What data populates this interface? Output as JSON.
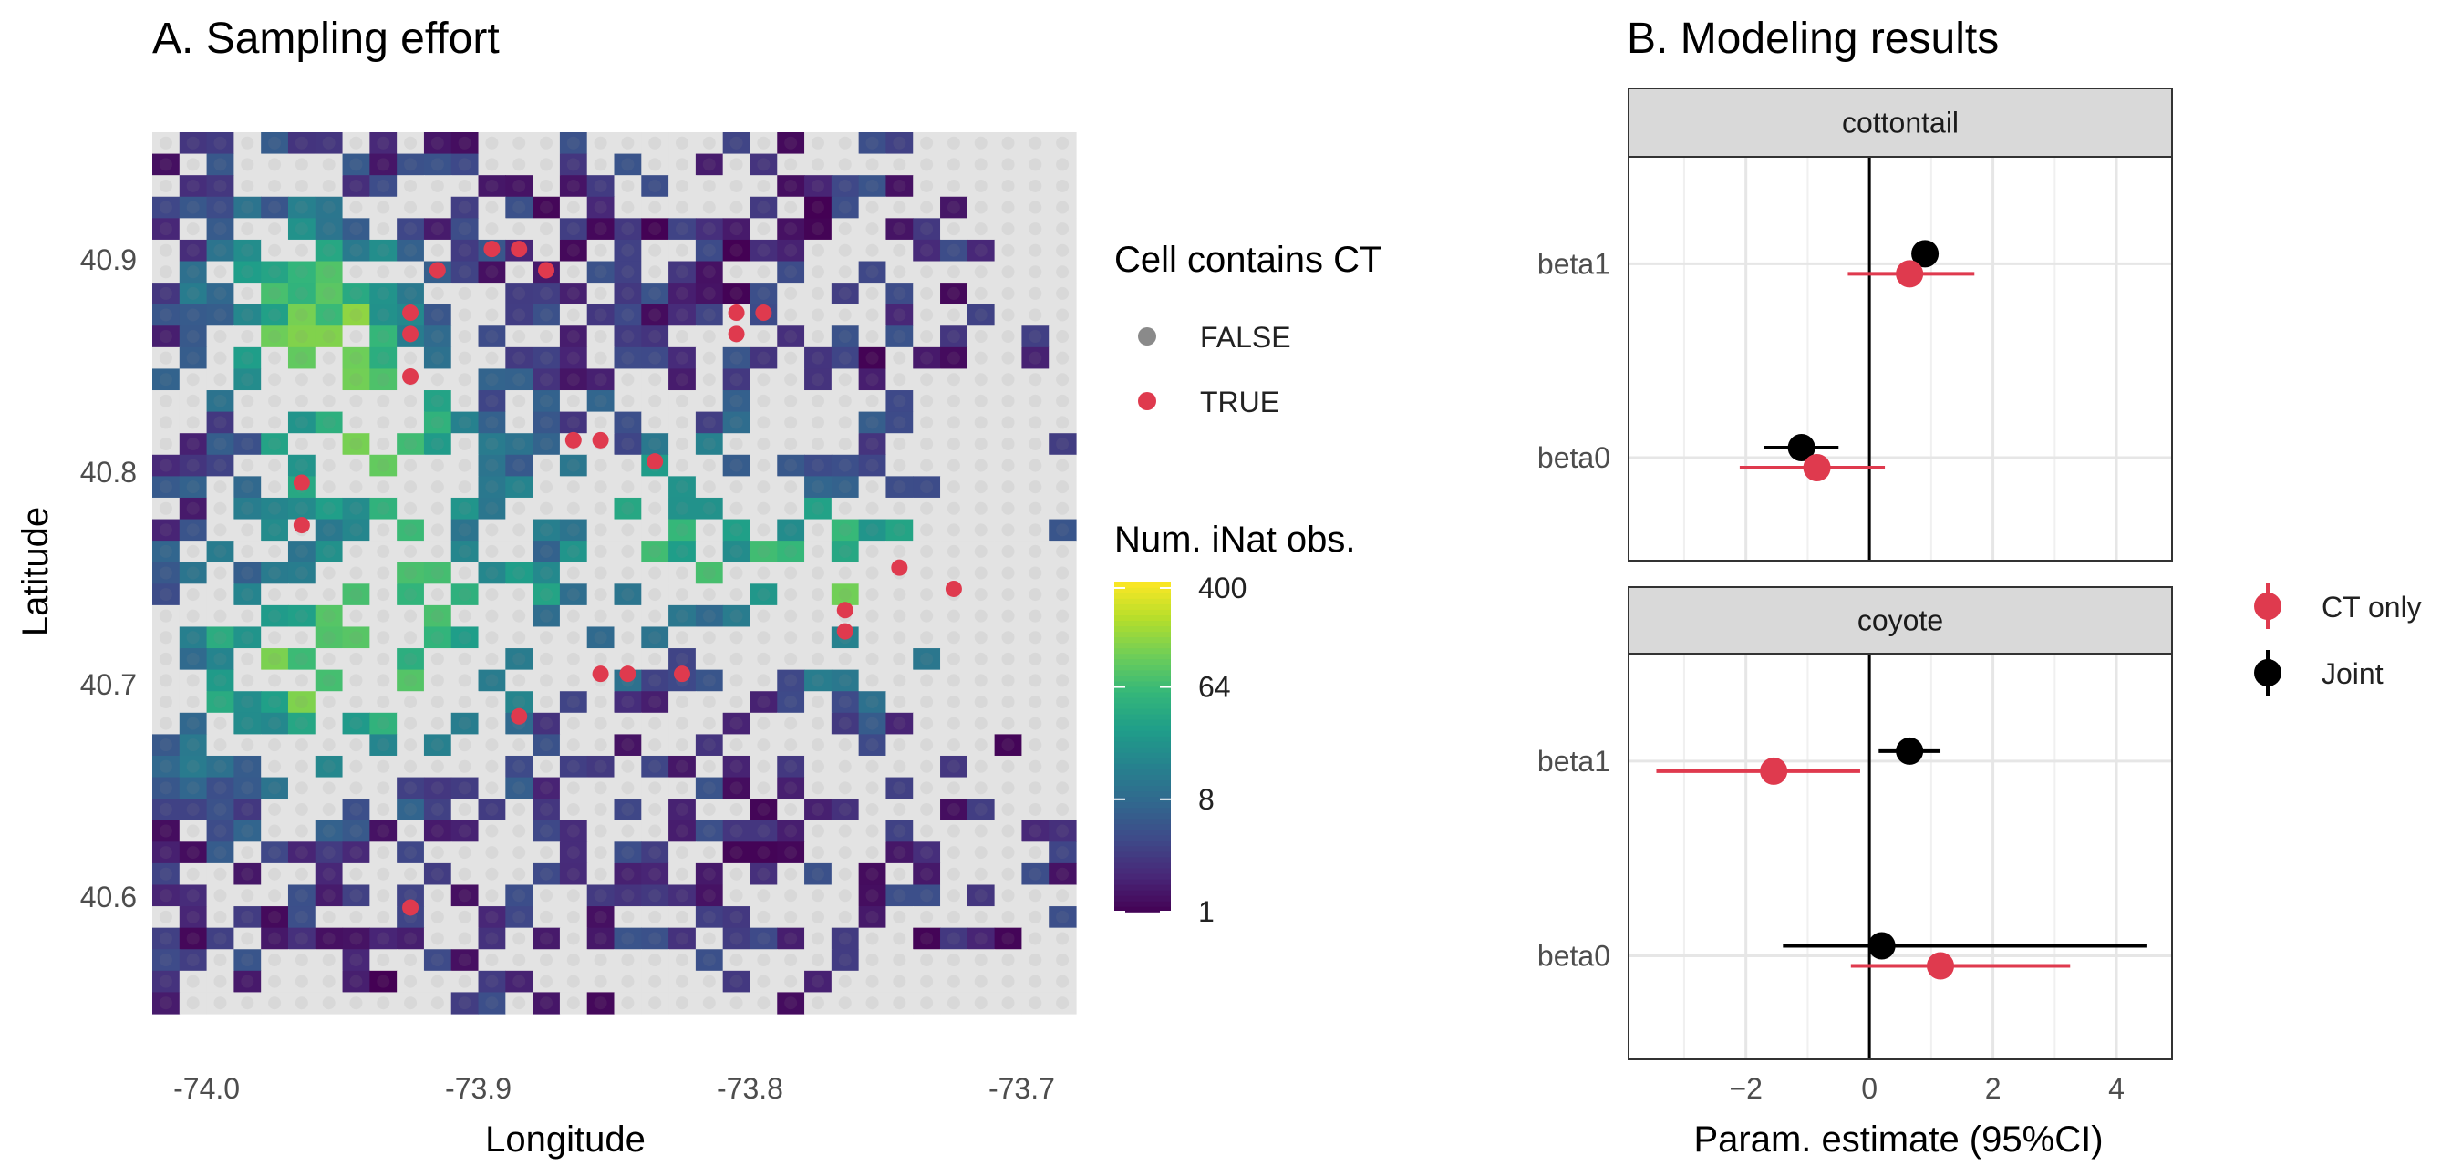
{
  "chart_data": [
    {
      "type": "heatmap",
      "title": "A. Sampling effort",
      "xlabel": "Longitude",
      "ylabel": "Latitude",
      "xlim": [
        -74.02,
        -73.68
      ],
      "ylim": [
        40.545,
        40.96
      ],
      "x_ticks": [
        -74.0,
        -73.9,
        -73.8,
        -73.7
      ],
      "x_tick_labels": [
        "-74.0",
        "-73.9",
        "-73.8",
        "-73.7"
      ],
      "y_ticks": [
        40.6,
        40.7,
        40.8,
        40.9
      ],
      "y_tick_labels": [
        "40.6",
        "40.7",
        "40.8",
        "40.9"
      ],
      "grid": true,
      "cell_size_deg": 0.01,
      "grid_extent": {
        "lon_min": -74.02,
        "lon_max": -73.68,
        "lat_min": 40.545,
        "lat_max": 40.96
      },
      "color_scale": {
        "type": "viridis",
        "transform": "log",
        "min": 1,
        "max": 450
      },
      "colors": {
        "empty_cell": "#e3e3e3",
        "ct_point": "#df3a4e",
        "non_ct_point": "#8a8a8a"
      },
      "legend_ct": {
        "title": "Cell contains CT",
        "entries": [
          {
            "label": "FALSE",
            "color": "#8a8a8a"
          },
          {
            "label": "TRUE",
            "color": "#df3a4e"
          }
        ]
      },
      "legend_obs": {
        "title": "Num. iNat obs.",
        "ticks": [
          1,
          8,
          64,
          400
        ],
        "tick_labels": [
          "1",
          "8",
          "64",
          "400"
        ]
      },
      "camera_trap_cells": [
        [
          -73.895,
          40.905
        ],
        [
          -73.885,
          40.905
        ],
        [
          -73.915,
          40.895
        ],
        [
          -73.875,
          40.895
        ],
        [
          -73.925,
          40.875
        ],
        [
          -73.925,
          40.865
        ],
        [
          -73.925,
          40.845
        ],
        [
          -73.805,
          40.875
        ],
        [
          -73.795,
          40.875
        ],
        [
          -73.805,
          40.865
        ],
        [
          -73.865,
          40.815
        ],
        [
          -73.855,
          40.815
        ],
        [
          -73.835,
          40.805
        ],
        [
          -73.965,
          40.795
        ],
        [
          -73.965,
          40.775
        ],
        [
          -73.745,
          40.755
        ],
        [
          -73.725,
          40.745
        ],
        [
          -73.765,
          40.735
        ],
        [
          -73.765,
          40.725
        ],
        [
          -73.855,
          40.705
        ],
        [
          -73.845,
          40.705
        ],
        [
          -73.825,
          40.705
        ],
        [
          -73.885,
          40.685
        ],
        [
          -73.925,
          40.595
        ]
      ]
    },
    {
      "type": "scatter",
      "title": "B. Modeling results",
      "xlabel": "Param. estimate (95%CI)",
      "xlim": [
        -3.9,
        4.9
      ],
      "x_ticks": [
        -2,
        0,
        2,
        4
      ],
      "x_tick_labels": [
        "−2",
        "0",
        "2",
        "4"
      ],
      "categories": [
        "beta1",
        "beta0"
      ],
      "grid": true,
      "legend": {
        "placement": "right",
        "entries": [
          {
            "label": "CT only",
            "color": "#df3a4e"
          },
          {
            "label": "Joint",
            "color": "#000000"
          }
        ]
      },
      "facets": [
        {
          "label": "cottontail",
          "series": [
            {
              "name": "Joint",
              "points": [
                {
                  "param": "beta1",
                  "estimate": 0.9,
                  "lower": 0.75,
                  "upper": 1.05
                },
                {
                  "param": "beta0",
                  "estimate": -1.1,
                  "lower": -1.7,
                  "upper": -0.5
                }
              ]
            },
            {
              "name": "CT only",
              "points": [
                {
                  "param": "beta1",
                  "estimate": 0.65,
                  "lower": -0.35,
                  "upper": 1.7
                },
                {
                  "param": "beta0",
                  "estimate": -0.85,
                  "lower": -2.1,
                  "upper": 0.25
                }
              ]
            }
          ]
        },
        {
          "label": "coyote",
          "series": [
            {
              "name": "Joint",
              "points": [
                {
                  "param": "beta1",
                  "estimate": 0.65,
                  "lower": 0.15,
                  "upper": 1.15
                },
                {
                  "param": "beta0",
                  "estimate": 0.2,
                  "lower": -1.4,
                  "upper": 4.5
                }
              ]
            },
            {
              "name": "CT only",
              "points": [
                {
                  "param": "beta1",
                  "estimate": -1.55,
                  "lower": -3.45,
                  "upper": -0.15
                },
                {
                  "param": "beta0",
                  "estimate": 1.15,
                  "lower": -0.3,
                  "upper": 3.25
                }
              ]
            }
          ]
        }
      ]
    }
  ]
}
